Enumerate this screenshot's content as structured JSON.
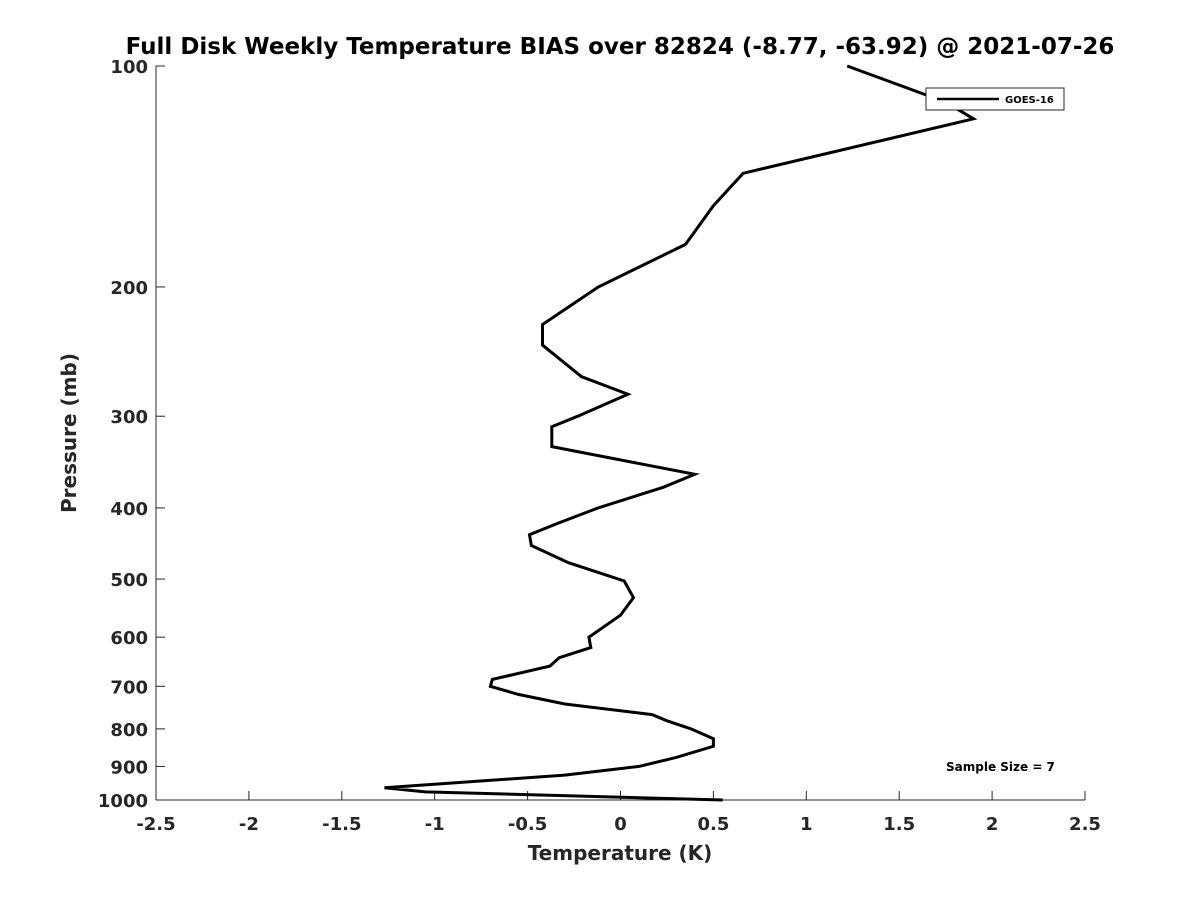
{
  "chart_data": {
    "type": "line",
    "title": "Full Disk Weekly Temperature BIAS over 82824 (-8.77, -63.92) @ 2021-07-26",
    "xlabel": "Temperature (K)",
    "ylabel": "Pressure (mb)",
    "xlim": [
      -2.5,
      2.5
    ],
    "ylim": [
      100,
      1000
    ],
    "y_scale": "log",
    "y_reversed": true,
    "x_ticks": [
      "-2.5",
      "-2",
      "-1.5",
      "-1",
      "-0.5",
      "0",
      "0.5",
      "1",
      "1.5",
      "2",
      "2.5"
    ],
    "x_tick_values": [
      -2.5,
      -2,
      -1.5,
      -1,
      -0.5,
      0,
      0.5,
      1,
      1.5,
      2,
      2.5
    ],
    "y_ticks": [
      "100",
      "200",
      "300",
      "400",
      "500",
      "600",
      "700",
      "800",
      "900",
      "1000"
    ],
    "y_tick_values": [
      100,
      200,
      300,
      400,
      500,
      600,
      700,
      800,
      900,
      1000
    ],
    "grid": false,
    "legend_position": "top-right",
    "annotation": "Sample Size = 7",
    "series": [
      {
        "name": "GOES-16",
        "color": "#000000",
        "points": [
          {
            "x": 0.55,
            "y": 1000
          },
          {
            "x": -1.05,
            "y": 975
          },
          {
            "x": -1.27,
            "y": 962
          },
          {
            "x": -0.3,
            "y": 925
          },
          {
            "x": 0.1,
            "y": 900
          },
          {
            "x": 0.3,
            "y": 875
          },
          {
            "x": 0.5,
            "y": 845
          },
          {
            "x": 0.5,
            "y": 825
          },
          {
            "x": 0.38,
            "y": 800
          },
          {
            "x": 0.25,
            "y": 780
          },
          {
            "x": 0.17,
            "y": 765
          },
          {
            "x": -0.3,
            "y": 740
          },
          {
            "x": -0.55,
            "y": 718
          },
          {
            "x": -0.7,
            "y": 700
          },
          {
            "x": -0.69,
            "y": 685
          },
          {
            "x": -0.38,
            "y": 657
          },
          {
            "x": -0.33,
            "y": 640
          },
          {
            "x": -0.16,
            "y": 620
          },
          {
            "x": -0.17,
            "y": 600
          },
          {
            "x": 0.0,
            "y": 560
          },
          {
            "x": 0.07,
            "y": 530
          },
          {
            "x": 0.02,
            "y": 503
          },
          {
            "x": -0.28,
            "y": 475
          },
          {
            "x": -0.48,
            "y": 450
          },
          {
            "x": -0.49,
            "y": 435
          },
          {
            "x": -0.34,
            "y": 420
          },
          {
            "x": -0.12,
            "y": 400
          },
          {
            "x": 0.23,
            "y": 375
          },
          {
            "x": 0.4,
            "y": 360
          },
          {
            "x": -0.37,
            "y": 330
          },
          {
            "x": -0.37,
            "y": 310
          },
          {
            "x": -0.23,
            "y": 300
          },
          {
            "x": 0.04,
            "y": 280
          },
          {
            "x": -0.21,
            "y": 265
          },
          {
            "x": -0.42,
            "y": 240
          },
          {
            "x": -0.42,
            "y": 225
          },
          {
            "x": -0.12,
            "y": 200
          },
          {
            "x": 0.35,
            "y": 175
          },
          {
            "x": 0.5,
            "y": 155
          },
          {
            "x": 0.66,
            "y": 140
          },
          {
            "x": 1.9,
            "y": 118
          },
          {
            "x": 1.75,
            "y": 112
          },
          {
            "x": 1.22,
            "y": 100
          }
        ]
      }
    ]
  }
}
